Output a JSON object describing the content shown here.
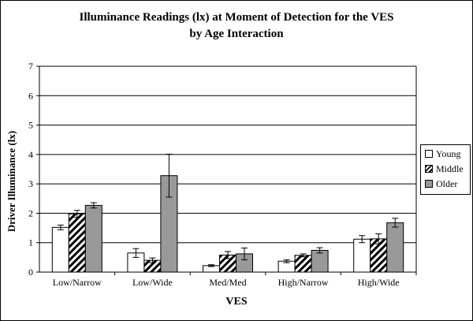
{
  "title": "Illuminance Readings (lx) at Moment of Detection for the VES",
  "subtitle": "by Age Interaction",
  "chart_data": {
    "type": "bar",
    "categories": [
      "Low/Narrow",
      "Low/Wide",
      "Med/Med",
      "High/Narrow",
      "High/Wide"
    ],
    "series": [
      {
        "name": "Young",
        "pattern": "white",
        "values": [
          1.52,
          0.65,
          0.22,
          0.37,
          1.12
        ],
        "errors": [
          0.08,
          0.15,
          0.03,
          0.05,
          0.12
        ]
      },
      {
        "name": "Middle",
        "pattern": "hatched",
        "values": [
          1.98,
          0.4,
          0.58,
          0.57,
          1.13
        ],
        "errors": [
          0.12,
          0.08,
          0.12,
          0.05,
          0.17
        ]
      },
      {
        "name": "Older",
        "pattern": "gray",
        "values": [
          2.27,
          3.28,
          0.62,
          0.74,
          1.68
        ],
        "errors": [
          0.09,
          0.73,
          0.2,
          0.09,
          0.15
        ]
      }
    ],
    "xlabel": "VES",
    "ylabel": "Driver Illuminance (lx)",
    "ylim": [
      0,
      7
    ],
    "yticks": [
      "0",
      "1",
      "2",
      "3",
      "4",
      "5",
      "6",
      "7"
    ],
    "grid": true,
    "legend": "right",
    "colors": {
      "young": "#ffffff",
      "middle": "#ffffff",
      "older": "#999999",
      "plot_bg": "#ffffff"
    }
  }
}
